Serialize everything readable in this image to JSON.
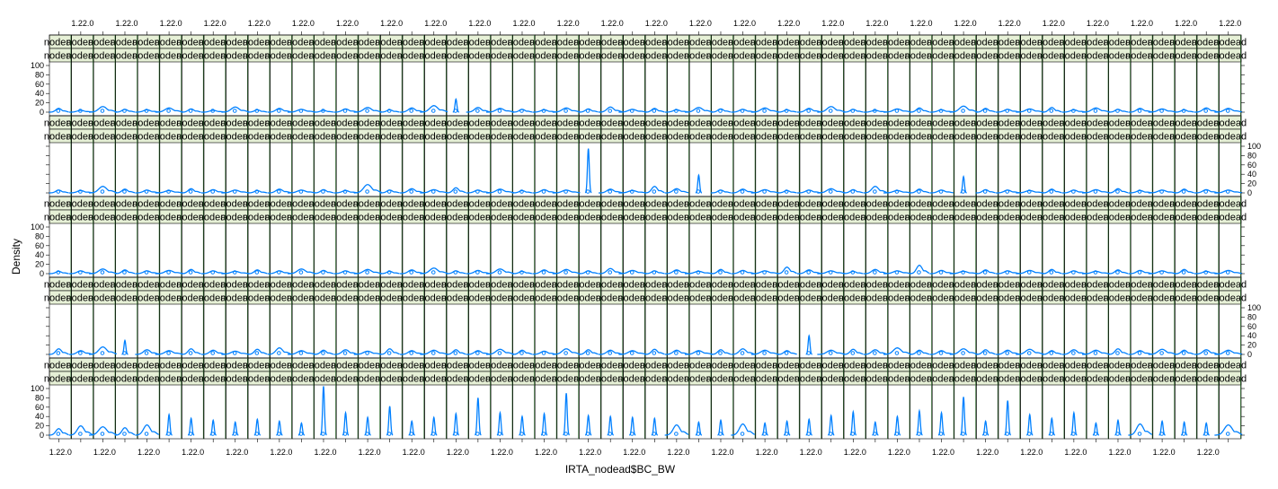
{
  "chart_data": {
    "type": "density-lattice",
    "xlabel": "IRTA_nodead$BC_BW",
    "ylabel": "Density",
    "x_tick_label": "1.22.0",
    "strip_label": "nodead",
    "y_ticks": [
      0,
      20,
      40,
      60,
      80,
      100
    ],
    "ylim": [
      0,
      100
    ],
    "columns": 54,
    "rows": 5,
    "x_tick_positions": "alternating top / bottom, every other column",
    "y_tick_positions": "alternating left / right per row",
    "line_color": "#0080ff",
    "row_peaks": [
      [
        8,
        4,
        12,
        6,
        5,
        9,
        7,
        4,
        11,
        5,
        8,
        6,
        4,
        7,
        10,
        5,
        9,
        14,
        28,
        10,
        8,
        6,
        5,
        9,
        7,
        11,
        6,
        8,
        5,
        10,
        7,
        6,
        9,
        5,
        8,
        12,
        6,
        4,
        7,
        9,
        5,
        13,
        8,
        6,
        7,
        10,
        5,
        9,
        6,
        8,
        7,
        5,
        9,
        8
      ],
      [
        6,
        5,
        14,
        8,
        6,
        5,
        9,
        7,
        6,
        5,
        8,
        6,
        7,
        5,
        18,
        6,
        9,
        7,
        11,
        6,
        8,
        5,
        7,
        6,
        95,
        8,
        5,
        14,
        9,
        38,
        6,
        8,
        7,
        5,
        6,
        9,
        7,
        14,
        5,
        8,
        6,
        35,
        7,
        6,
        5,
        8,
        6,
        7,
        9,
        5,
        6,
        8,
        7,
        6
      ],
      [
        5,
        6,
        10,
        8,
        6,
        7,
        9,
        6,
        5,
        8,
        6,
        10,
        7,
        6,
        9,
        5,
        8,
        12,
        6,
        7,
        10,
        5,
        8,
        9,
        6,
        11,
        7,
        6,
        8,
        5,
        9,
        7,
        6,
        14,
        8,
        6,
        5,
        9,
        6,
        18,
        7,
        5,
        8,
        6,
        7,
        9,
        6,
        5,
        8,
        7,
        6,
        9,
        5,
        7
      ],
      [
        12,
        8,
        16,
        30,
        10,
        8,
        12,
        9,
        7,
        11,
        14,
        8,
        9,
        10,
        7,
        12,
        8,
        9,
        10,
        8,
        11,
        9,
        7,
        12,
        10,
        9,
        8,
        11,
        9,
        8,
        10,
        12,
        9,
        8,
        40,
        9,
        11,
        10,
        14,
        9,
        8,
        12,
        10,
        9,
        11,
        8,
        10,
        9,
        12,
        8,
        11,
        9,
        10,
        9
      ],
      [
        14,
        20,
        18,
        16,
        22,
        44,
        36,
        32,
        28,
        34,
        30,
        26,
        105,
        48,
        38,
        62,
        30,
        38,
        46,
        80,
        48,
        40,
        46,
        90,
        42,
        40,
        38,
        36,
        22,
        28,
        32,
        24,
        26,
        30,
        34,
        42,
        50,
        28,
        40,
        52,
        48,
        82,
        30,
        74,
        44,
        36,
        48,
        26,
        32,
        24,
        30,
        28,
        26,
        22
      ]
    ]
  }
}
